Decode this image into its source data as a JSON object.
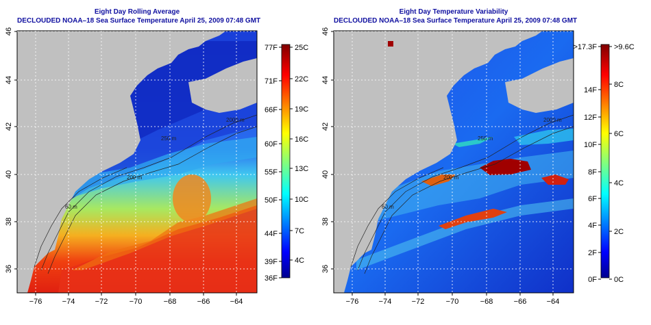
{
  "panels": [
    {
      "id": "sst",
      "title_line1": "Eight Day Rolling Average",
      "title_line2": "DECLOUDED NOAA–18 Sea Surface Temperature April 25, 2009 07:48 GMT",
      "colorbar_left_labels": [
        "77F",
        "71F",
        "66F",
        "60F",
        "55F",
        "50F",
        "44F",
        "39F",
        "36F"
      ],
      "colorbar_right_labels": [
        "25C",
        "22C",
        "19C",
        "16C",
        "13C",
        "10C",
        "7C",
        "4C"
      ]
    },
    {
      "id": "var",
      "title_line1": "Eight Day Temperature Variability",
      "title_line2": "DECLOUDED NOAA–18 Sea Surface Temperature April 25, 2009 07:48 GMT",
      "colorbar_left_labels": [
        ">17.3F",
        "14F",
        "12F",
        "10F",
        "8F",
        "6F",
        "4F",
        "2F",
        "0F"
      ],
      "colorbar_right_labels": [
        ">9.6C",
        "8C",
        "6C",
        "4C",
        "2C",
        "0C"
      ]
    }
  ],
  "lat_labels": [
    "46",
    "44",
    "42",
    "40",
    "38",
    "36"
  ],
  "lon_labels": [
    "−76",
    "−74",
    "−72",
    "−70",
    "−68",
    "−66",
    "−64"
  ],
  "contour_labels": [
    "2000 m",
    "200 m",
    "60 m",
    "250 m"
  ],
  "colors": {
    "land": "#c0c0c0",
    "title": "#1010a0"
  }
}
